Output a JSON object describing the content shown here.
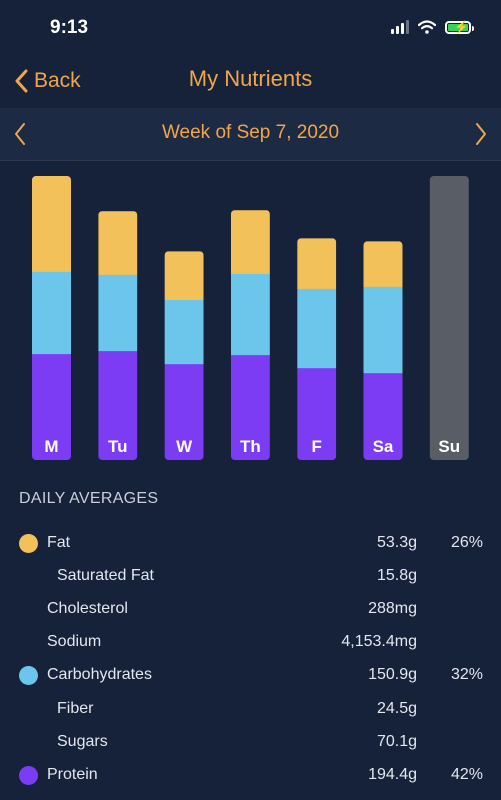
{
  "status_bar": {
    "time": "9:13"
  },
  "nav": {
    "back_label": "Back",
    "title": "My Nutrients"
  },
  "week": {
    "label": "Week of Sep 7, 2020"
  },
  "colors": {
    "fat": "#f3c15a",
    "carbohydrates": "#6cc6ec",
    "protein": "#7b3cf4",
    "empty_day": "#585d66",
    "accent": "#f0a64a"
  },
  "chart_data": {
    "type": "bar",
    "stacked": true,
    "categories": [
      "M",
      "Tu",
      "W",
      "Th",
      "F",
      "Sa",
      "Su"
    ],
    "series": [
      {
        "key": "protein",
        "name": "Protein",
        "values": [
          106,
          109,
          96,
          105,
          92,
          87,
          0
        ]
      },
      {
        "key": "carbohydrates",
        "name": "Carbohydrates",
        "values": [
          82,
          76,
          64,
          81,
          79,
          86,
          0
        ]
      },
      {
        "key": "fat",
        "name": "Fat",
        "values": [
          95,
          63,
          48,
          63,
          50,
          45,
          0
        ]
      }
    ],
    "empty_days": [
      "Su"
    ],
    "ylim": [
      0,
      283
    ]
  },
  "averages": {
    "title": "DAILY AVERAGES",
    "rows": [
      {
        "name": "Fat",
        "amount": "53.3g",
        "percent": "26%",
        "dot": "fat",
        "indent": 0
      },
      {
        "name": "Saturated Fat",
        "amount": "15.8g",
        "percent": "",
        "dot": "",
        "indent": 1
      },
      {
        "name": "Cholesterol",
        "amount": "288mg",
        "percent": "",
        "dot": "",
        "indent": 0
      },
      {
        "name": "Sodium",
        "amount": "4,153.4mg",
        "percent": "",
        "dot": "",
        "indent": 0
      },
      {
        "name": "Carbohydrates",
        "amount": "150.9g",
        "percent": "32%",
        "dot": "carbohydrates",
        "indent": 0
      },
      {
        "name": "Fiber",
        "amount": "24.5g",
        "percent": "",
        "dot": "",
        "indent": 1
      },
      {
        "name": "Sugars",
        "amount": "70.1g",
        "percent": "",
        "dot": "",
        "indent": 1
      },
      {
        "name": "Protein",
        "amount": "194.4g",
        "percent": "42%",
        "dot": "protein",
        "indent": 0
      }
    ]
  }
}
